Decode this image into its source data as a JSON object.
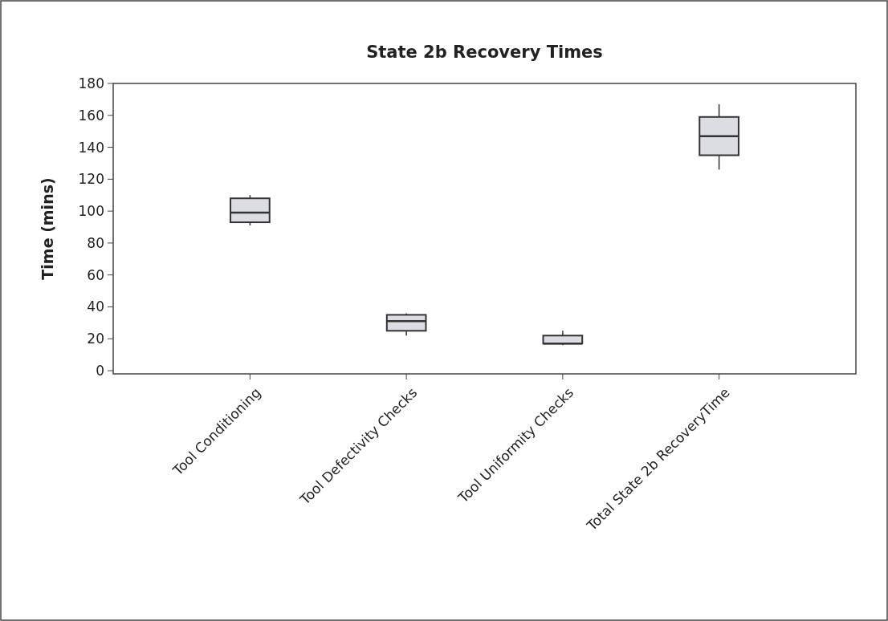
{
  "chart_data": {
    "type": "box",
    "title": "State 2b Recovery Times",
    "ylabel": "Time (mins)",
    "categories": [
      "Tool Conditioning",
      "Tool Defectivity Checks",
      "Tool Uniformity Checks",
      "Total State 2b RecoveryTime"
    ],
    "boxes": [
      {
        "low": 91,
        "q1": 93,
        "median": 99,
        "q3": 108,
        "high": 110
      },
      {
        "low": 22,
        "q1": 25,
        "median": 31,
        "q3": 35,
        "high": 36
      },
      {
        "low": 16,
        "q1": 17,
        "median": 17,
        "q3": 22,
        "high": 25
      },
      {
        "low": 126,
        "q1": 135,
        "median": 147,
        "q3": 159,
        "high": 167
      }
    ],
    "color": "#dcdde3",
    "ylim": [
      -2,
      180
    ],
    "yticks": [
      0,
      20,
      40,
      60,
      80,
      100,
      120,
      140,
      160,
      180
    ],
    "grid": false
  }
}
